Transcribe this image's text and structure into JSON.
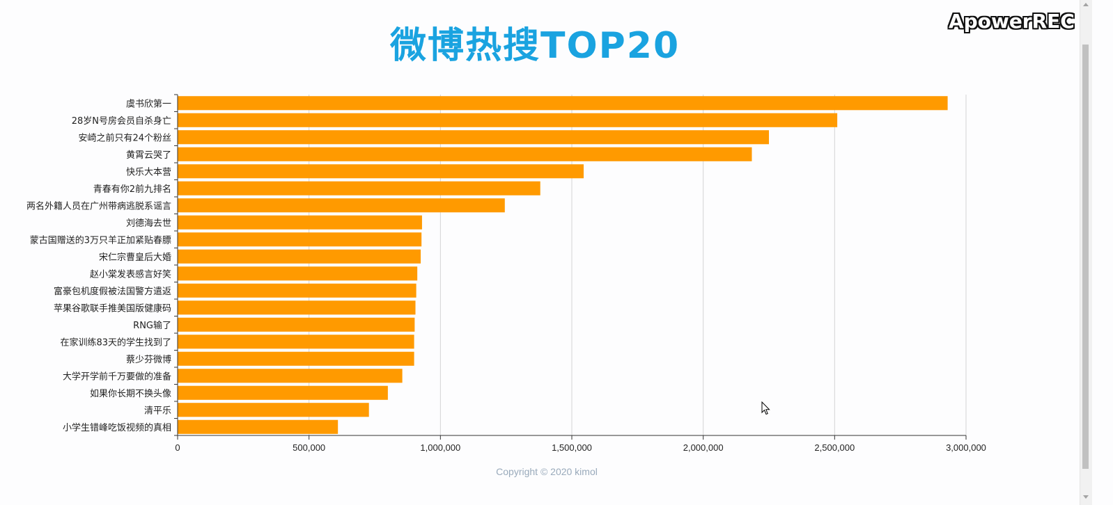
{
  "chart_data": {
    "type": "bar",
    "orientation": "horizontal",
    "title": "微博热搜TOP20",
    "categories": [
      "虞书欣第一",
      "28岁N号房会员自杀身亡",
      "安崎之前只有24个粉丝",
      "黄霄云哭了",
      "快乐大本营",
      "青春有你2前九排名",
      "两名外籍人员在广州带病逃脱系谣言",
      "刘德海去世",
      "蒙古国赠送的3万只羊正加紧贴春膘",
      "宋仁宗曹皇后大婚",
      "赵小棠发表感言好笑",
      "富豪包机度假被法国警方遣返",
      "苹果谷歌联手推美国版健康码",
      "RNG输了",
      "在家训练83天的学生找到了",
      "蔡少芬微博",
      "大学开学前千万要做的准备",
      "如果你长期不换头像",
      "清平乐",
      "小学生错峰吃饭视频的真相"
    ],
    "values": [
      2930000,
      2510000,
      2250000,
      2185000,
      1545000,
      1380000,
      1245000,
      930000,
      928000,
      925000,
      912000,
      908000,
      905000,
      902000,
      900000,
      900000,
      855000,
      800000,
      728000,
      610000
    ],
    "xlim": [
      0,
      3000000
    ],
    "xticks": [
      0,
      500000,
      1000000,
      1500000,
      2000000,
      2500000,
      3000000
    ],
    "xtick_labels": [
      "0",
      "500,000",
      "1,000,000",
      "1,500,000",
      "2,000,000",
      "2,500,000",
      "3,000,000"
    ],
    "grid": "vertical",
    "bar_color": "#ff9a00"
  },
  "footer": {
    "copyright": "Copyright © 2020 kimol"
  },
  "watermark": {
    "text": "ApowerREC"
  }
}
